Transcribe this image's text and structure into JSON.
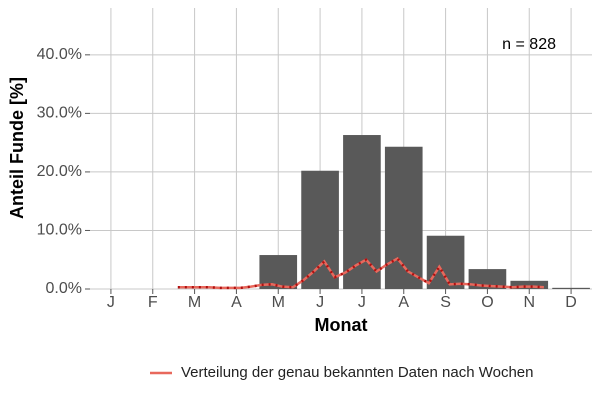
{
  "chart_data": {
    "type": "bar",
    "categories": [
      "J",
      "F",
      "M",
      "A",
      "M",
      "J",
      "J",
      "A",
      "S",
      "O",
      "N",
      "D"
    ],
    "values": [
      0,
      0,
      0,
      0,
      5.8,
      20.2,
      26.3,
      24.3,
      9.1,
      3.4,
      1.4,
      0.2
    ],
    "color": "#595959",
    "x_label": "Monat",
    "y_label": "Anteil Funde [%]",
    "annotation": "n = 828",
    "ylim": [
      0,
      48
    ],
    "yticks": [
      {
        "value": 0,
        "label": "0.0%"
      },
      {
        "value": 10,
        "label": "10.0%"
      },
      {
        "value": 20,
        "label": "20.0%"
      },
      {
        "value": 30,
        "label": "30.0%"
      },
      {
        "value": 40,
        "label": "40.0%"
      }
    ],
    "xlim": [
      0.5,
      12.5
    ],
    "grid": true,
    "legend_position": "bottom",
    "line_series": {
      "type": "line",
      "name": "Verteilung der genau bekannten Daten nach Wochen",
      "color": "#e8685c",
      "x": [
        2.6,
        2.85,
        3.1,
        3.35,
        3.6,
        3.85,
        4.1,
        4.35,
        4.6,
        4.85,
        5.1,
        5.35,
        5.6,
        5.85,
        6.1,
        6.35,
        6.6,
        6.85,
        7.1,
        7.35,
        7.6,
        7.85,
        8.1,
        8.35,
        8.6,
        8.85,
        9.1,
        9.35,
        9.6,
        9.85,
        10.1,
        10.35,
        10.6,
        10.85,
        11.1,
        11.35
      ],
      "values": [
        0.3,
        0.3,
        0.3,
        0.3,
        0.2,
        0.2,
        0.2,
        0.4,
        0.7,
        0.8,
        0.4,
        0.3,
        1.5,
        3.0,
        4.7,
        2.0,
        2.8,
        4.0,
        5.0,
        3.0,
        4.2,
        5.2,
        3.0,
        2.0,
        1.0,
        3.8,
        0.8,
        0.9,
        0.8,
        0.6,
        0.5,
        0.4,
        0.3,
        0.4,
        0.4,
        0.3
      ]
    }
  }
}
